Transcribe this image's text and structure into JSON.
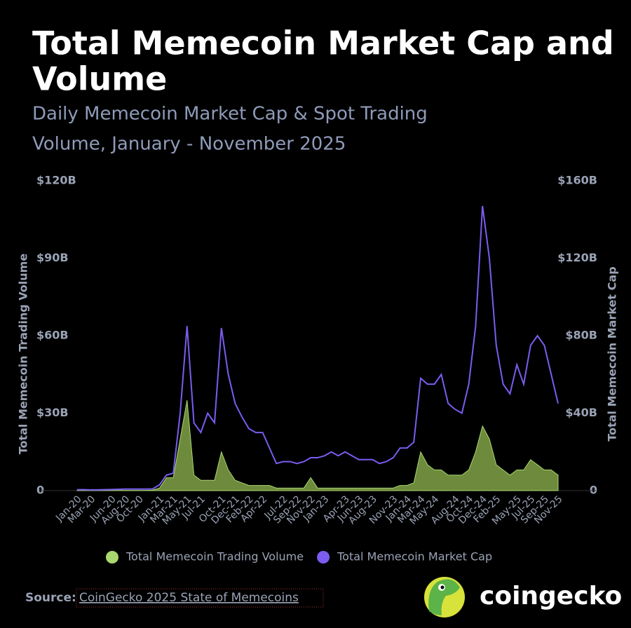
{
  "chart_data": {
    "type": "line",
    "title": "Total Memecoin Market Cap and Volume",
    "subtitle": "Daily Memecoin Market Cap & Spot Trading Volume, January - November 2025",
    "y_label": "Total Memecoin Trading Volume",
    "y2_label": "Total Memecoin Market Cap",
    "source_label": "Source:",
    "source": "CoinGecko 2025 State of Memecoins",
    "brand": "coingecko",
    "categories": [
      "Jan-20",
      null,
      "Mar-20",
      null,
      null,
      "Jun-20",
      null,
      "Aug-20",
      null,
      "Oct-20",
      null,
      null,
      "Jan-21",
      null,
      "Mar-21",
      null,
      "May-21",
      null,
      "Jul-21",
      null,
      null,
      "Oct-21",
      null,
      "Dec-21",
      null,
      "Feb-22",
      null,
      "Apr-22",
      null,
      null,
      "Jul-22",
      null,
      "Sep-22",
      null,
      "Nov-22",
      null,
      "Jan-23",
      null,
      null,
      "Apr-23",
      null,
      "Jun-23",
      null,
      "Aug-23",
      null,
      null,
      "Nov-23",
      null,
      "Jan-24",
      null,
      "Mar-24",
      null,
      "May-24",
      null,
      null,
      "Aug-24",
      null,
      "Oct-24",
      null,
      "Dec-24",
      null,
      "Feb-25",
      null,
      null,
      "May-25",
      null,
      "Jul-25",
      null,
      "Sep-25",
      null,
      "Nov-25"
    ],
    "series": [
      {
        "name": "Total Memecoin Trading Volume",
        "color": "#a8d86e",
        "fill": "#6e8a3c",
        "kind": "area",
        "values": [
          0.1,
          0.1,
          0.1,
          0.1,
          0.1,
          0.1,
          0.1,
          0.1,
          0.1,
          0.1,
          0.1,
          0.2,
          1,
          5,
          5,
          20,
          35,
          6,
          4,
          4,
          4,
          15,
          8,
          4,
          3,
          2,
          2,
          2,
          2,
          1,
          1,
          1,
          1,
          1,
          5,
          1,
          1,
          1,
          1,
          1,
          1,
          1,
          1,
          1,
          1,
          1,
          1,
          2,
          2,
          3,
          15,
          10,
          8,
          8,
          6,
          6,
          6,
          8,
          15,
          25,
          20,
          10,
          8,
          6,
          8,
          8,
          12,
          10,
          8,
          8,
          6
        ]
      },
      {
        "name": "Total Memecoin Market Cap",
        "color": "#7b5cf0",
        "kind": "line",
        "axis": "y2",
        "values": [
          0.5,
          0.5,
          0.4,
          0.4,
          0.5,
          0.6,
          0.7,
          0.8,
          0.8,
          0.8,
          0.8,
          0.9,
          3,
          8,
          9,
          40,
          85,
          35,
          30,
          40,
          35,
          84,
          60,
          45,
          38,
          32,
          30,
          30,
          22,
          14,
          15,
          15,
          14,
          15,
          17,
          17,
          18,
          20,
          18,
          20,
          18,
          16,
          16,
          16,
          14,
          15,
          17,
          22,
          22,
          25,
          58,
          55,
          55,
          60,
          45,
          42,
          40,
          55,
          85,
          147,
          120,
          75,
          55,
          50,
          65,
          55,
          75,
          80,
          75,
          60,
          45
        ]
      }
    ],
    "ylim": [
      0,
      120
    ],
    "yticks": [
      0,
      {
        "value": 30,
        "label": "$30B"
      },
      {
        "value": 60,
        "label": "$60B"
      },
      {
        "value": 90,
        "label": "$90B"
      },
      {
        "value": 120,
        "label": "$120B"
      }
    ],
    "y2lim": [
      0,
      160
    ],
    "y2ticks": [
      0,
      {
        "value": 40,
        "label": "$40B"
      },
      {
        "value": 80,
        "label": "$80B"
      },
      {
        "value": 120,
        "label": "$120B"
      },
      {
        "value": 160,
        "label": "$160B"
      }
    ]
  }
}
